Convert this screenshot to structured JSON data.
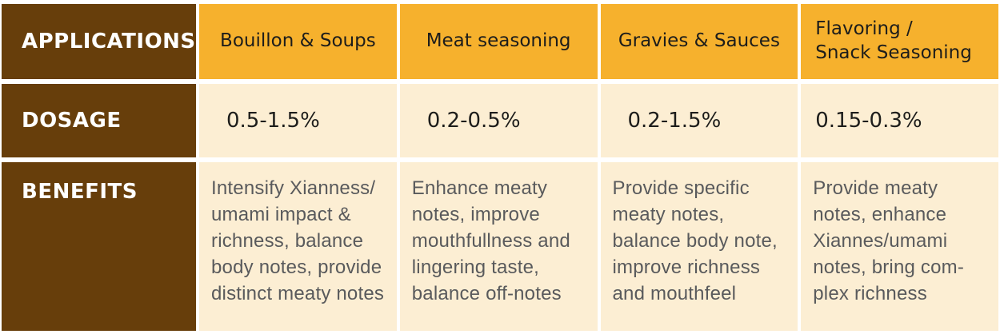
{
  "colors": {
    "brown": "#673E0B",
    "orange": "#F6B12D",
    "cream": "#FCEED3",
    "text-dark": "#1D1D1B",
    "text-gray": "#595A5C",
    "gutter": "#FFFFFF"
  },
  "row_labels": {
    "applications": "APPLICATIONS",
    "dosage": "DOSAGE",
    "benefits": "BENEFITS"
  },
  "columns": [
    {
      "application": "Bouillon & Soups",
      "dosage": "0.5-1.5%",
      "benefits": "Intensify Xianness/\numami impact &\nrichness, balance\nbody notes, provide\ndistinct meaty notes"
    },
    {
      "application": "Meat seasoning",
      "dosage": "0.2-0.5%",
      "benefits": "Enhance meaty\nnotes, improve\nmouthfullness and\nlingering taste,\nbalance off-notes"
    },
    {
      "application": "Gravies & Sauces",
      "dosage": "0.2-1.5%",
      "benefits": "Provide specific\nmeaty notes,\nbalance body note,\nimprove richness\nand mouthfeel"
    },
    {
      "application": "Flavoring /\nSnack Seasoning",
      "dosage": "0.15-0.3%",
      "benefits": "Provide meaty\nnotes, enhance\nXiannes/umami\nnotes, bring com-\nplex richness"
    }
  ]
}
